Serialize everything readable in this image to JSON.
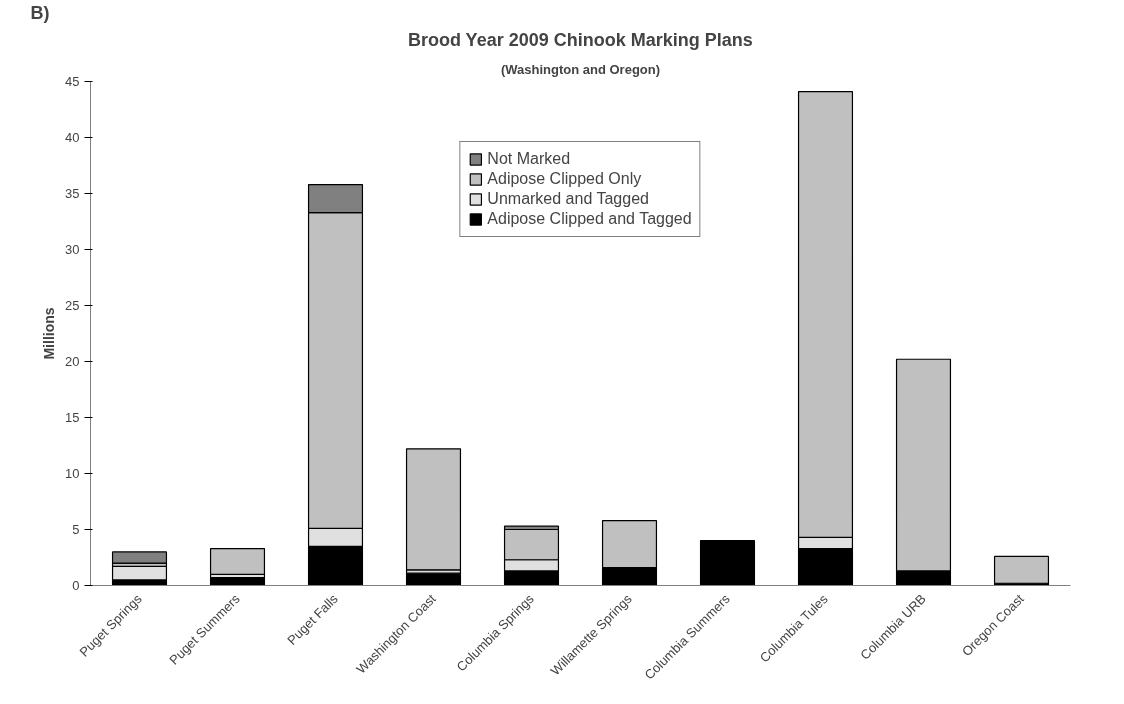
{
  "chart_data": {
    "type": "bar",
    "title": "Brood Year 2009 Chinook Marking Plans",
    "subtitle": "(Washington and Oregon)",
    "ylabel": "Millions",
    "annotations": [
      "B)"
    ],
    "categories": [
      "Puget Springs",
      "Puget Summers",
      "Puget Falls",
      "Washington Coast",
      "Columbia Springs",
      "Willamette Springs",
      "Columbia Summers",
      "Columbia Tules",
      "Columbia URB",
      "Oregon Coast"
    ],
    "stacked": true,
    "series": [
      {
        "name": "Adipose Clipped and Tagged",
        "color": "#000000",
        "values": [
          0.5,
          0.7,
          3.5,
          1.1,
          1.3,
          1.6,
          4.0,
          3.3,
          1.3,
          0.2
        ]
      },
      {
        "name": "Unmarked and Tagged",
        "color": "#e0e0e0",
        "values": [
          1.2,
          0.3,
          1.6,
          0.3,
          1.0,
          0,
          0,
          1.0,
          0,
          0
        ]
      },
      {
        "name": "Adipose Clipped Only",
        "color": "#c0c0c0",
        "values": [
          0.3,
          2.3,
          28.2,
          10.8,
          2.7,
          4.2,
          0,
          39.8,
          18.9,
          2.4
        ]
      },
      {
        "name": "Not Marked",
        "color": "#808080",
        "values": [
          1.0,
          0,
          2.5,
          0,
          0.3,
          0,
          0,
          0,
          0,
          0
        ]
      }
    ],
    "ylim": [
      0,
      45
    ],
    "yticks": [
      0,
      5,
      10,
      15,
      20,
      25,
      30,
      35,
      40,
      45
    ],
    "grid": false,
    "legend": "top"
  }
}
